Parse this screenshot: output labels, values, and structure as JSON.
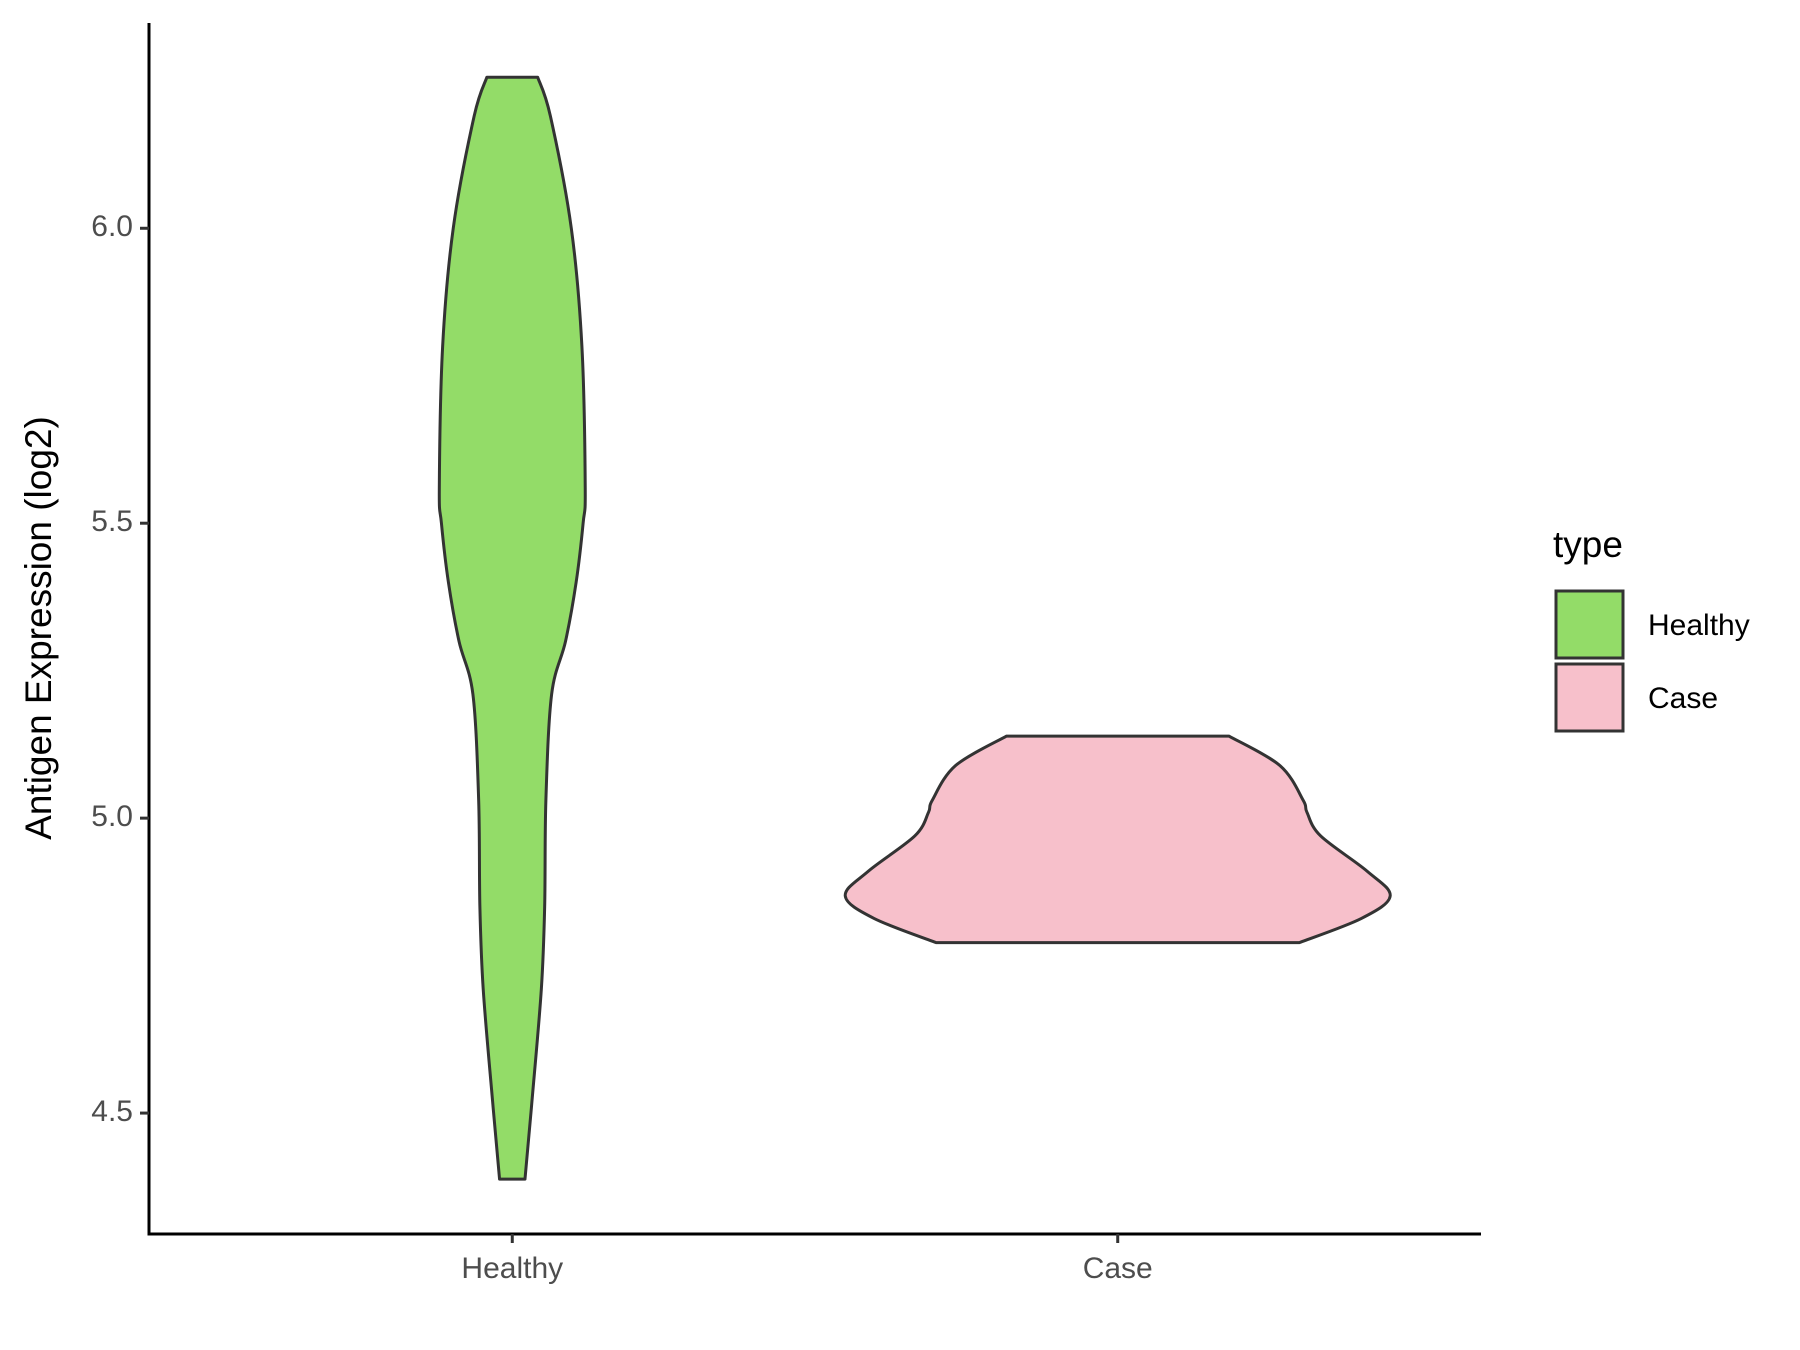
{
  "chart_data": {
    "type": "violin",
    "y_label": "Antigen Expression (log2)",
    "categories": [
      "Healthy",
      "Case"
    ],
    "series": [
      {
        "name": "Healthy",
        "color": "#93dc68",
        "y": [
          6.256,
          6.19,
          6.0,
          5.8,
          5.56,
          5.5,
          5.4,
          5.3,
          5.21,
          5.03,
          4.85,
          4.71,
          4.52,
          4.388
        ],
        "width": [
          0.084,
          0.126,
          0.195,
          0.23,
          0.241,
          0.234,
          0.211,
          0.176,
          0.13,
          0.111,
          0.107,
          0.096,
          0.065,
          0.042
        ]
      },
      {
        "name": "Case",
        "color": "#f7c0cb",
        "y": [
          5.139,
          5.089,
          5.03,
          5.01,
          4.97,
          4.91,
          4.868,
          4.83,
          4.789
        ],
        "width": [
          0.368,
          0.536,
          0.613,
          0.625,
          0.67,
          0.824,
          0.9,
          0.805,
          0.6
        ]
      }
    ],
    "ylim": [
      4.295,
      6.348
    ],
    "yticks": [
      {
        "value": 4.5,
        "label": "4.5"
      },
      {
        "value": 5.0,
        "label": "5.0"
      },
      {
        "value": 5.5,
        "label": "5.5"
      },
      {
        "value": 6.0,
        "label": "6.0"
      }
    ],
    "legend_title": "type",
    "legend_position": "right",
    "outline_color": "#333333"
  }
}
